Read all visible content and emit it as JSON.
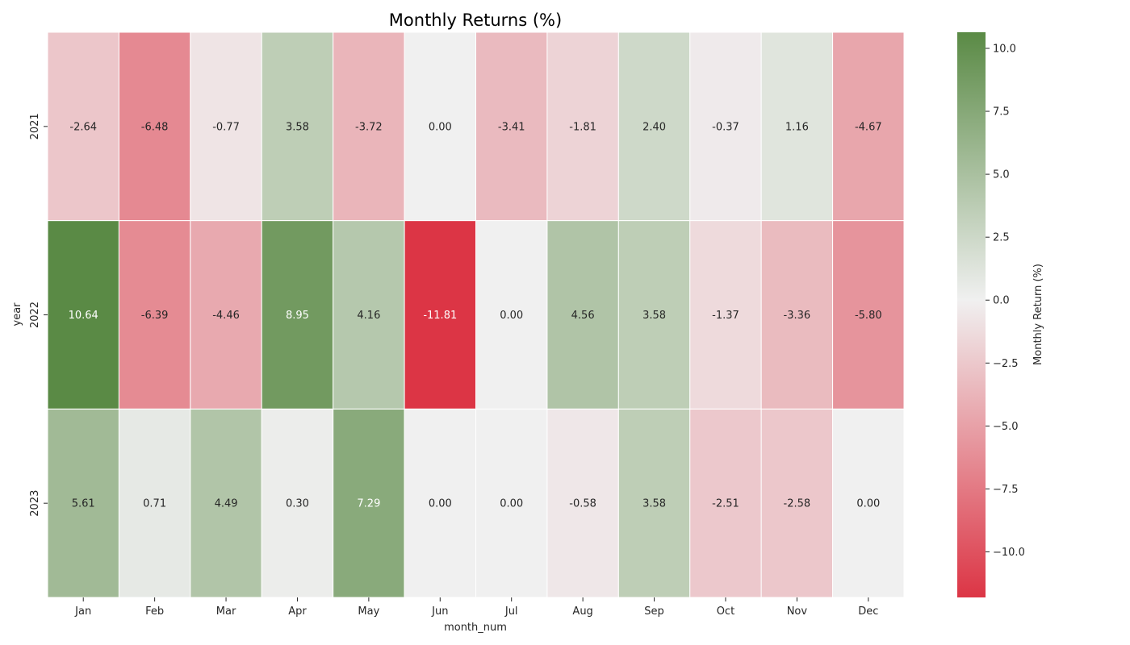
{
  "chart_data": {
    "type": "heatmap",
    "title": "Monthly Returns (%)",
    "xlabel": "month_num",
    "ylabel": "year",
    "x_categories": [
      "Jan",
      "Feb",
      "Mar",
      "Apr",
      "May",
      "Jun",
      "Jul",
      "Aug",
      "Sep",
      "Oct",
      "Nov",
      "Dec"
    ],
    "y_categories": [
      "2021",
      "2022",
      "2023"
    ],
    "values": [
      [
        -2.64,
        -6.48,
        -0.77,
        3.58,
        -3.72,
        0.0,
        -3.41,
        -1.81,
        2.4,
        -0.37,
        1.16,
        -4.67
      ],
      [
        10.64,
        -6.39,
        -4.46,
        8.95,
        4.16,
        -11.81,
        0.0,
        4.56,
        3.58,
        -1.37,
        -3.36,
        -5.8
      ],
      [
        5.61,
        0.71,
        4.49,
        0.3,
        7.29,
        0.0,
        0.0,
        -0.58,
        3.58,
        -2.51,
        -2.58,
        0.0
      ]
    ],
    "value_format_decimals": 2,
    "colorbar": {
      "label": "Monthly Return (%)",
      "range": [
        -11.81,
        10.64
      ],
      "ticks": [
        10.0,
        7.5,
        5.0,
        2.5,
        0.0,
        -2.5,
        -5.0,
        -7.5,
        -10.0
      ],
      "tick_labels": [
        "10.0",
        "7.5",
        "5.0",
        "2.5",
        "0.0",
        "−2.5",
        "−5.0",
        "−7.5",
        "−10.0"
      ],
      "colors": {
        "negative_end": "#dc3545",
        "center": "#f0f0f0",
        "positive_end": "#5a8a45"
      }
    },
    "grid": false
  }
}
